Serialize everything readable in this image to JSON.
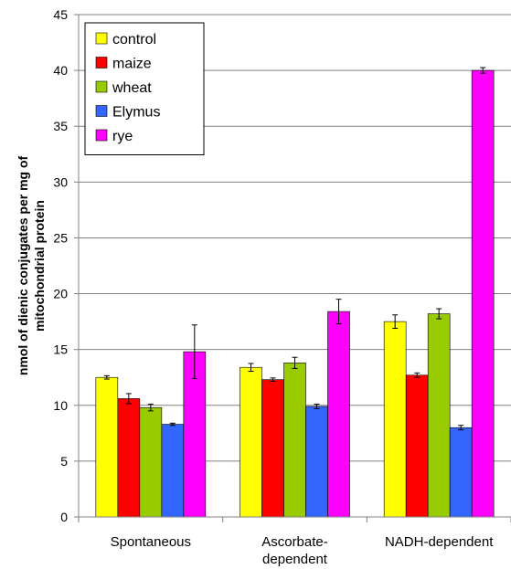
{
  "chart_data": {
    "type": "bar",
    "categories": [
      [
        "Spontaneous"
      ],
      [
        "Ascorbate-",
        "dependent"
      ],
      [
        "NADH-dependent"
      ]
    ],
    "ylabel": [
      "nmol of dienic conjugates per mg of",
      "mitochondrial protein"
    ],
    "ylim": [
      0,
      45
    ],
    "yticks": [
      0,
      5,
      10,
      15,
      20,
      25,
      30,
      35,
      40,
      45
    ],
    "grid": true,
    "legend_position": "top-left",
    "series": [
      {
        "name": "control",
        "color": "#FFFF00",
        "values": [
          12.5,
          13.4,
          17.5
        ],
        "errors": [
          0.15,
          0.35,
          0.6
        ]
      },
      {
        "name": "maize",
        "color": "#FF0000",
        "values": [
          10.6,
          12.3,
          12.7
        ],
        "errors": [
          0.45,
          0.15,
          0.2
        ]
      },
      {
        "name": "wheat",
        "color": "#99CC00",
        "values": [
          9.8,
          13.8,
          18.2
        ],
        "errors": [
          0.3,
          0.5,
          0.45
        ]
      },
      {
        "name": "Elymus",
        "color": "#3366FF",
        "values": [
          8.3,
          9.9,
          8.0
        ],
        "errors": [
          0.1,
          0.2,
          0.2
        ]
      },
      {
        "name": "rye",
        "color": "#FF00FF",
        "values": [
          14.8,
          18.4,
          40.0
        ],
        "errors": [
          2.4,
          1.1,
          0.25
        ]
      }
    ]
  }
}
